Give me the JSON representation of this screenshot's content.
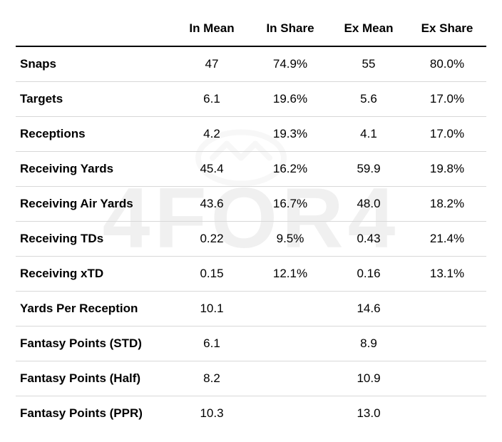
{
  "watermark_text": "4FOR4",
  "table": {
    "columns": [
      "",
      "In Mean",
      "In Share",
      "Ex Mean",
      "Ex Share"
    ],
    "column_widths": [
      "220px",
      "110px",
      "110px",
      "110px",
      "110px"
    ],
    "header_fontsize": 17,
    "header_fontweight": 700,
    "cell_fontsize": 17,
    "label_fontweight": 700,
    "border_color": "#d8d8d8",
    "header_border_color": "#000000",
    "text_color": "#000000",
    "background_color": "#ffffff",
    "watermark_color": "#f0f0f0",
    "rows": [
      {
        "label": "Snaps",
        "in_mean": "47",
        "in_share": "74.9%",
        "ex_mean": "55",
        "ex_share": "80.0%"
      },
      {
        "label": "Targets",
        "in_mean": "6.1",
        "in_share": "19.6%",
        "ex_mean": "5.6",
        "ex_share": "17.0%"
      },
      {
        "label": "Receptions",
        "in_mean": "4.2",
        "in_share": "19.3%",
        "ex_mean": "4.1",
        "ex_share": "17.0%"
      },
      {
        "label": "Receiving Yards",
        "in_mean": "45.4",
        "in_share": "16.2%",
        "ex_mean": "59.9",
        "ex_share": "19.8%"
      },
      {
        "label": "Receiving Air Yards",
        "in_mean": "43.6",
        "in_share": "16.7%",
        "ex_mean": "48.0",
        "ex_share": "18.2%"
      },
      {
        "label": "Receiving TDs",
        "in_mean": "0.22",
        "in_share": "9.5%",
        "ex_mean": "0.43",
        "ex_share": "21.4%"
      },
      {
        "label": "Receiving xTD",
        "in_mean": "0.15",
        "in_share": "12.1%",
        "ex_mean": "0.16",
        "ex_share": "13.1%"
      },
      {
        "label": "Yards Per Reception",
        "in_mean": "10.1",
        "in_share": "",
        "ex_mean": "14.6",
        "ex_share": ""
      },
      {
        "label": "Fantasy Points (STD)",
        "in_mean": "6.1",
        "in_share": "",
        "ex_mean": "8.9",
        "ex_share": ""
      },
      {
        "label": "Fantasy Points (Half)",
        "in_mean": "8.2",
        "in_share": "",
        "ex_mean": "10.9",
        "ex_share": ""
      },
      {
        "label": "Fantasy Points (PPR)",
        "in_mean": "10.3",
        "in_share": "",
        "ex_mean": "13.0",
        "ex_share": ""
      }
    ]
  }
}
